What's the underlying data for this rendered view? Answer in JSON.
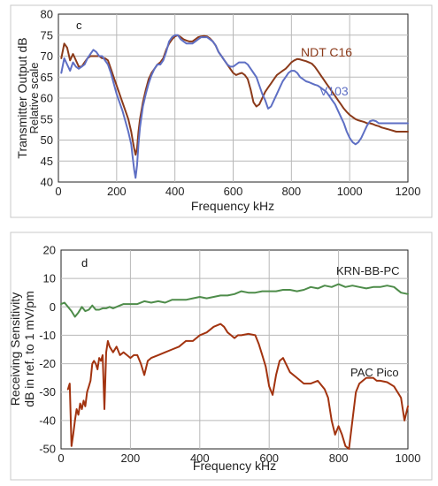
{
  "chart_data": [
    {
      "type": "line",
      "panel_label": "c",
      "title": "",
      "xlabel": "Frequency  kHz",
      "ylabel": "Transmitter Output  dB",
      "ylabel_sub": "Relative scale",
      "xlim": [
        0,
        1200
      ],
      "ylim": [
        40,
        80
      ],
      "xticks": [
        0,
        200,
        400,
        600,
        800,
        1000,
        1200
      ],
      "yticks": [
        40,
        45,
        50,
        55,
        60,
        65,
        70,
        75,
        80
      ],
      "grid": true,
      "series": [
        {
          "name": "NDT C16",
          "color": "#8B3A1A",
          "x": [
            10,
            20,
            30,
            40,
            50,
            60,
            70,
            80,
            90,
            100,
            110,
            120,
            130,
            140,
            150,
            160,
            170,
            180,
            190,
            200,
            210,
            220,
            230,
            240,
            250,
            255,
            260,
            265,
            270,
            275,
            280,
            290,
            300,
            310,
            320,
            330,
            340,
            350,
            360,
            370,
            380,
            390,
            400,
            410,
            420,
            430,
            440,
            450,
            460,
            470,
            480,
            490,
            500,
            510,
            520,
            530,
            540,
            550,
            560,
            570,
            580,
            590,
            600,
            610,
            620,
            630,
            640,
            650,
            660,
            670,
            680,
            690,
            700,
            710,
            720,
            730,
            740,
            750,
            760,
            770,
            780,
            790,
            800,
            810,
            820,
            830,
            840,
            850,
            860,
            870,
            880,
            890,
            900,
            910,
            920,
            930,
            940,
            950,
            960,
            970,
            980,
            990,
            1000,
            1010,
            1020,
            1030,
            1040,
            1050,
            1060,
            1070,
            1080,
            1090,
            1100,
            1110,
            1120,
            1130,
            1140,
            1150,
            1160,
            1170,
            1180,
            1190,
            1200
          ],
          "values": [
            69.5,
            73.0,
            72.0,
            69.0,
            70.5,
            69.0,
            67.5,
            67.5,
            68.5,
            69.5,
            70.0,
            70.0,
            70.0,
            70.0,
            69.5,
            69.5,
            69.0,
            67.0,
            65.0,
            63.0,
            61.0,
            59.0,
            57.0,
            55.0,
            52.0,
            50.0,
            48.0,
            46.5,
            48.0,
            52.0,
            55.0,
            59.0,
            62.0,
            64.5,
            66.0,
            67.0,
            68.0,
            68.5,
            69.5,
            71.5,
            73.0,
            74.0,
            74.7,
            75.0,
            74.5,
            74.0,
            73.7,
            73.5,
            73.5,
            74.0,
            74.5,
            74.7,
            74.8,
            74.7,
            74.2,
            73.5,
            72.5,
            71.0,
            70.0,
            69.0,
            68.0,
            67.0,
            66.0,
            65.5,
            65.8,
            66.0,
            65.5,
            64.5,
            62.0,
            59.0,
            58.0,
            58.5,
            60.0,
            61.5,
            62.5,
            63.5,
            64.5,
            65.5,
            66.0,
            66.5,
            67.0,
            67.7,
            68.5,
            69.0,
            69.3,
            69.2,
            69.0,
            68.8,
            68.5,
            68.2,
            67.5,
            66.5,
            65.5,
            64.5,
            63.5,
            62.5,
            61.5,
            60.5,
            59.5,
            58.5,
            57.5,
            56.7,
            56.0,
            55.5,
            55.0,
            54.7,
            54.5,
            54.3,
            54.0,
            54.0,
            53.8,
            53.5,
            53.3,
            53.0,
            52.8,
            52.6,
            52.4,
            52.2,
            52.0,
            52.0,
            52.0,
            52.0,
            52.0
          ]
        },
        {
          "name": "V103",
          "color": "#5E6FC4",
          "x": [
            10,
            20,
            30,
            40,
            50,
            60,
            70,
            80,
            90,
            100,
            110,
            120,
            130,
            140,
            150,
            160,
            170,
            180,
            190,
            200,
            210,
            220,
            230,
            240,
            250,
            255,
            260,
            265,
            270,
            275,
            280,
            290,
            300,
            310,
            320,
            330,
            340,
            350,
            360,
            370,
            380,
            390,
            400,
            410,
            420,
            430,
            440,
            450,
            460,
            470,
            480,
            490,
            500,
            510,
            520,
            530,
            540,
            550,
            560,
            570,
            580,
            590,
            600,
            610,
            620,
            630,
            640,
            650,
            660,
            670,
            680,
            690,
            700,
            710,
            720,
            730,
            740,
            750,
            760,
            770,
            780,
            790,
            800,
            810,
            820,
            830,
            840,
            850,
            860,
            870,
            880,
            890,
            900,
            910,
            920,
            930,
            940,
            950,
            960,
            970,
            980,
            990,
            1000,
            1010,
            1020,
            1030,
            1040,
            1050,
            1060,
            1070,
            1080,
            1090,
            1100,
            1110,
            1120,
            1130,
            1140,
            1150,
            1160,
            1170,
            1180,
            1190,
            1200
          ],
          "values": [
            66.0,
            69.5,
            68.0,
            66.5,
            68.5,
            67.5,
            67.0,
            67.5,
            68.0,
            69.5,
            70.5,
            71.5,
            71.0,
            70.0,
            70.0,
            69.0,
            68.0,
            66.0,
            63.5,
            61.0,
            59.0,
            57.0,
            54.5,
            52.0,
            49.0,
            46.0,
            43.0,
            41.0,
            44.0,
            49.0,
            53.0,
            58.0,
            61.0,
            63.5,
            65.5,
            67.0,
            68.0,
            68.0,
            69.0,
            71.0,
            73.5,
            74.5,
            75.0,
            75.0,
            74.0,
            73.5,
            73.0,
            73.0,
            73.0,
            73.5,
            74.0,
            74.5,
            74.5,
            74.5,
            74.0,
            73.5,
            72.5,
            71.0,
            70.0,
            69.0,
            68.0,
            67.5,
            67.5,
            68.0,
            68.5,
            68.5,
            68.5,
            68.0,
            67.0,
            66.0,
            65.0,
            63.0,
            61.0,
            59.5,
            57.5,
            58.0,
            59.5,
            61.0,
            62.5,
            64.0,
            65.0,
            66.0,
            66.5,
            66.5,
            66.0,
            65.0,
            64.5,
            64.0,
            63.8,
            63.5,
            63.2,
            63.0,
            62.5,
            62.0,
            61.5,
            60.5,
            59.5,
            58.5,
            57.0,
            55.5,
            54.0,
            52.0,
            50.5,
            49.5,
            49.0,
            49.5,
            50.5,
            52.0,
            53.5,
            54.5,
            54.7,
            54.5,
            54.0,
            54.0,
            54.0,
            54.0,
            54.0,
            54.0,
            54.0,
            54.0,
            54.0,
            54.0,
            54.0
          ]
        }
      ]
    },
    {
      "type": "line",
      "panel_label": "d",
      "title": "",
      "xlabel": "Frequency  kHz",
      "ylabel": "Receiving Sensitivity",
      "ylabel_sub": "dB in ref. to 1 mV/pm",
      "xlim": [
        0,
        1000
      ],
      "ylim": [
        -50,
        20
      ],
      "xticks": [
        0,
        200,
        400,
        600,
        800,
        1000
      ],
      "yticks": [
        -50,
        -40,
        -30,
        -20,
        -10,
        0,
        10,
        20
      ],
      "grid": true,
      "series": [
        {
          "name": "KRN-BB-PC",
          "color": "#4E8C4A",
          "x": [
            0,
            10,
            20,
            30,
            40,
            50,
            60,
            70,
            80,
            90,
            100,
            110,
            120,
            130,
            140,
            150,
            160,
            170,
            180,
            190,
            200,
            220,
            240,
            260,
            280,
            300,
            320,
            340,
            360,
            380,
            400,
            420,
            440,
            460,
            480,
            500,
            520,
            540,
            560,
            580,
            600,
            620,
            640,
            660,
            680,
            700,
            720,
            740,
            760,
            780,
            800,
            820,
            840,
            860,
            880,
            900,
            920,
            940,
            960,
            980,
            1000
          ],
          "values": [
            1.0,
            1.5,
            0.0,
            -1.5,
            -3.5,
            -2.0,
            0.0,
            -1.5,
            -1.0,
            0.5,
            -1.0,
            -1.0,
            -0.5,
            -0.5,
            0.0,
            -0.5,
            0.0,
            0.5,
            1.0,
            1.0,
            1.0,
            1.0,
            2.0,
            1.5,
            2.0,
            1.5,
            2.5,
            2.5,
            2.5,
            3.0,
            3.5,
            3.0,
            3.5,
            4.0,
            4.0,
            4.5,
            5.5,
            5.0,
            5.0,
            5.5,
            5.5,
            5.5,
            6.0,
            6.0,
            5.5,
            6.0,
            7.0,
            6.5,
            7.5,
            7.0,
            8.0,
            7.0,
            7.5,
            7.0,
            6.5,
            7.0,
            7.0,
            7.5,
            7.0,
            5.0,
            4.5
          ]
        },
        {
          "name": "PAC Pico",
          "color": "#A2330F",
          "x": [
            20,
            25,
            30,
            35,
            40,
            45,
            50,
            55,
            60,
            65,
            70,
            75,
            80,
            85,
            90,
            95,
            100,
            105,
            110,
            115,
            120,
            125,
            130,
            135,
            140,
            150,
            160,
            170,
            180,
            190,
            200,
            210,
            220,
            230,
            240,
            250,
            260,
            280,
            300,
            320,
            340,
            360,
            380,
            400,
            420,
            440,
            460,
            470,
            480,
            490,
            500,
            510,
            520,
            540,
            560,
            570,
            580,
            590,
            600,
            610,
            620,
            630,
            640,
            660,
            680,
            700,
            720,
            740,
            760,
            770,
            780,
            790,
            800,
            810,
            820,
            830,
            840,
            850,
            860,
            870,
            880,
            890,
            900,
            910,
            920,
            940,
            960,
            980,
            990,
            1000
          ],
          "values": [
            -29.0,
            -27.0,
            -49.0,
            -45.0,
            -40.0,
            -36.0,
            -38.0,
            -34.0,
            -36.0,
            -33.0,
            -35.0,
            -30.0,
            -28.0,
            -26.0,
            -20.0,
            -19.0,
            -20.0,
            -22.0,
            -18.0,
            -19.0,
            -17.0,
            -36.0,
            -16.0,
            -12.0,
            -14.0,
            -16.0,
            -14.0,
            -17.0,
            -16.0,
            -17.0,
            -18.0,
            -17.0,
            -17.0,
            -20.0,
            -24.0,
            -19.0,
            -18.0,
            -17.0,
            -16.0,
            -15.0,
            -14.0,
            -12.0,
            -12.0,
            -10.0,
            -9.0,
            -7.0,
            -6.0,
            -7.0,
            -9.0,
            -10.0,
            -11.0,
            -10.0,
            -10.0,
            -9.5,
            -10.0,
            -13.0,
            -17.0,
            -21.0,
            -28.0,
            -31.0,
            -24.0,
            -19.0,
            -18.0,
            -23.0,
            -25.0,
            -27.0,
            -27.0,
            -26.0,
            -29.0,
            -32.0,
            -40.0,
            -45.0,
            -42.0,
            -45.0,
            -49.0,
            -50.0,
            -40.0,
            -30.0,
            -27.0,
            -26.0,
            -25.0,
            -25.0,
            -25.0,
            -26.0,
            -26.0,
            -26.5,
            -28.0,
            -32.0,
            -40.0,
            -35.0
          ]
        }
      ]
    }
  ]
}
